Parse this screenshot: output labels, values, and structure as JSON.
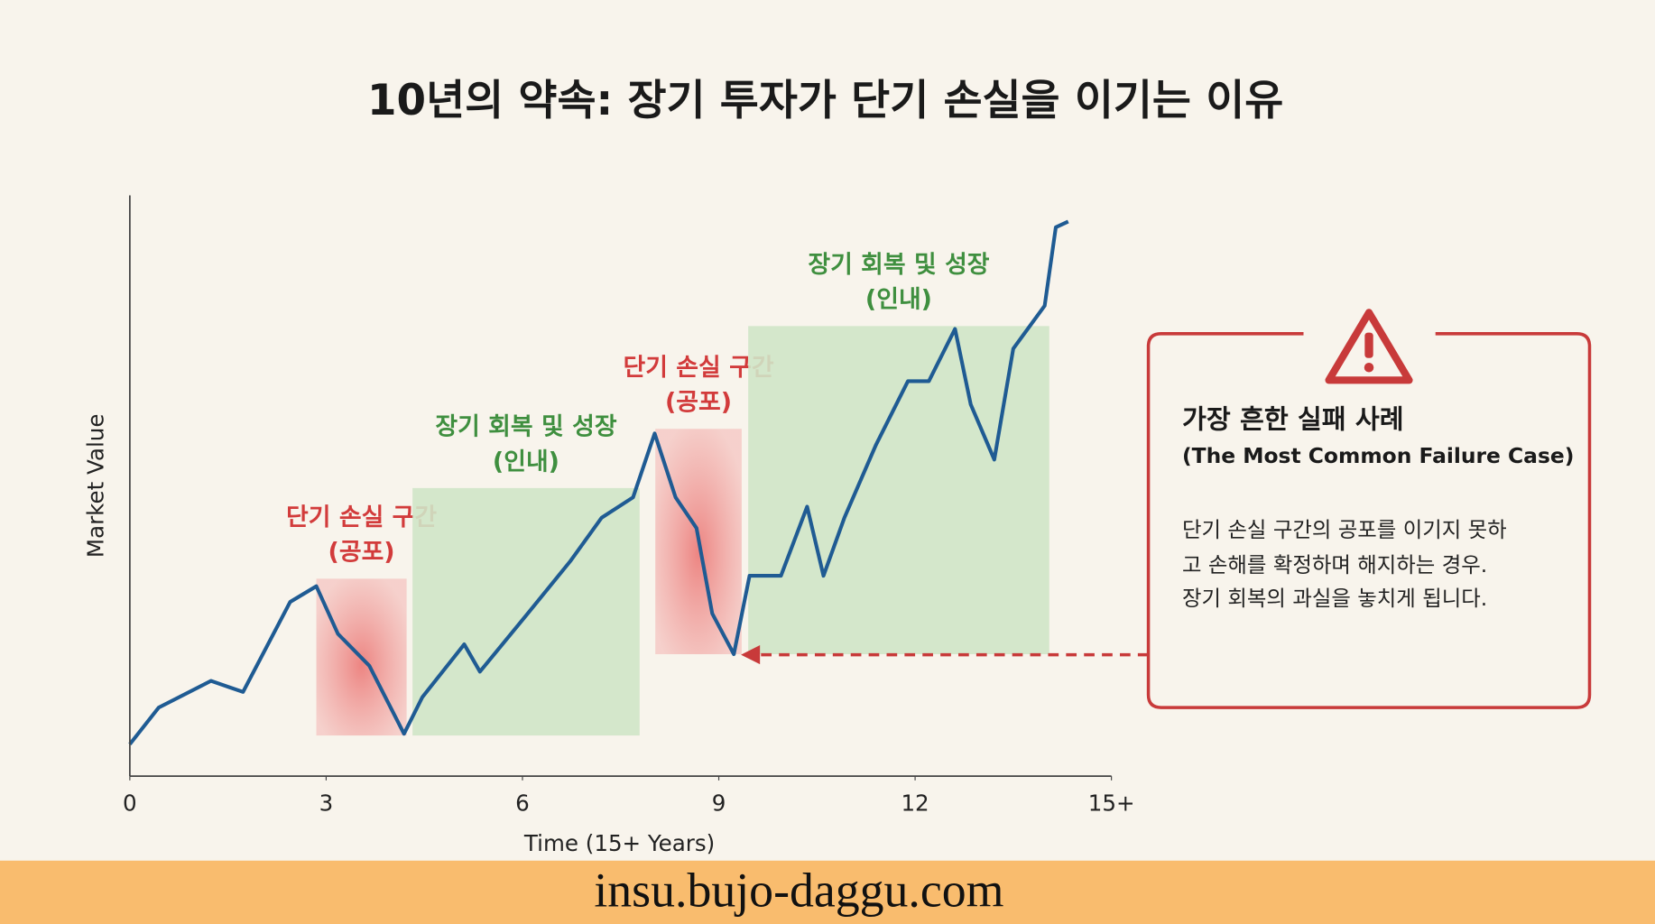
{
  "chart_data": {
    "type": "line",
    "title": "10년의 약속: 장기 투자가 단기 손실을 이기는 이유",
    "xlabel": "Time (15+ Years)",
    "ylabel": "Market Value",
    "xlim": [
      0,
      15
    ],
    "ylim": [
      0,
      100
    ],
    "xticks": [
      0,
      3,
      6,
      9,
      12,
      {
        "value": 15,
        "label": "15+"
      }
    ],
    "series": [
      {
        "color": "#1f5b93",
        "x": [
          0,
          0.44,
          1.24,
          1.73,
          2.45,
          2.85,
          3.18,
          3.66,
          4.19,
          4.47,
          5.11,
          5.35,
          6.08,
          6.73,
          7.21,
          7.69,
          8.02,
          8.34,
          8.66,
          8.9,
          9.23,
          9.47,
          9.95,
          10.35,
          10.6,
          10.92,
          11.4,
          11.89,
          12.21,
          12.61,
          12.85,
          13.21,
          13.5,
          13.98,
          14.15,
          14.34
        ],
        "values": [
          5.5,
          11.8,
          16.4,
          14.5,
          30,
          32.7,
          24.5,
          19,
          7.3,
          13.6,
          22.7,
          18,
          28,
          37,
          44.5,
          48,
          59,
          48,
          42.7,
          28,
          21,
          34.5,
          34.5,
          46.4,
          34.5,
          44.5,
          57,
          68,
          68,
          77,
          64,
          54.5,
          73.6,
          81,
          94.5,
          95.5
        ]
      }
    ],
    "regions": [
      {
        "label": "단기 손실 구간",
        "sublabel": "(공포)",
        "color": "#d23b3b",
        "x": [
          2.85,
          4.23
        ],
        "y": [
          7,
          34
        ]
      },
      {
        "label": "장기 회복 및 성장",
        "sublabel": "(인내)",
        "color": "#3f8f3f",
        "x": [
          4.32,
          7.79
        ],
        "y": [
          7,
          49.6
        ]
      },
      {
        "label": "단기 손실 구간",
        "sublabel": "(공포)",
        "color": "#d23b3b",
        "x": [
          8.03,
          9.35
        ],
        "y": [
          21,
          59.8
        ]
      },
      {
        "label": "장기 회복 및 성장",
        "sublabel": "(인내)",
        "color": "#3f8f3f",
        "x": [
          9.45,
          14.05
        ],
        "y": [
          21,
          77.5
        ]
      }
    ]
  },
  "callout": {
    "title": "가장 흔한 실패 사례",
    "subtitle": "(The Most Common Failure Case)",
    "body": [
      "단기 손실 구간의 공포를 이기지 못하",
      "고 손해를 확정하며 해지하는 경우.",
      "장기 회복의 과실을 놓치게 됩니다."
    ]
  },
  "footer": "insu.bujo-daggu.com"
}
